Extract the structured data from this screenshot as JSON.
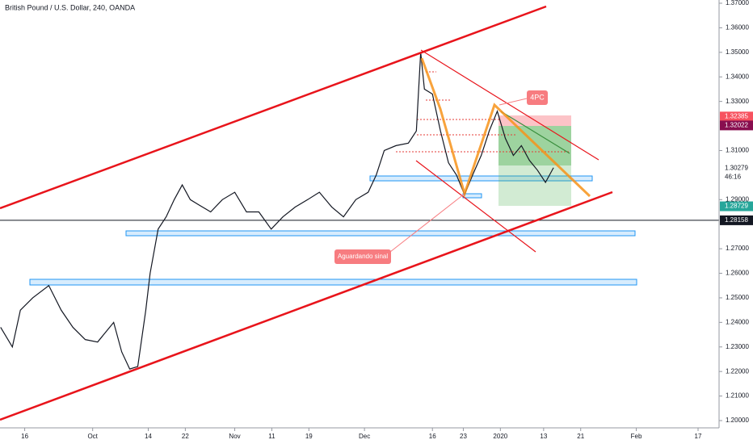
{
  "chart_data": {
    "type": "line",
    "title": "British Pound / U.S. Dollar, 240, OANDA",
    "series": [
      {
        "name": "GBPUSD",
        "color": "#131722",
        "x": [
          -3.9,
          -2,
          -0.7,
          1.3,
          3.9,
          5.9,
          7.8,
          9.8,
          11.8,
          14.4,
          15.7,
          17,
          18.3,
          19.6,
          20.3,
          21.6,
          22.9,
          24.2,
          25.5,
          26.8,
          28.1,
          30.1,
          32,
          34,
          35.9,
          37.9,
          39.9,
          41.8,
          43.8,
          45.8,
          47.7,
          49.7,
          51.6,
          53.6,
          55.6,
          56.9,
          58.2,
          60.1,
          62.1,
          63.4,
          64.1,
          64.7,
          66,
          67.3,
          68.6,
          69.9,
          71.2,
          72.5,
          73.9,
          75.2,
          76.5,
          77.8,
          79.1,
          80.4,
          81.7,
          83,
          84.3,
          85.6
        ],
        "values": [
          1.238,
          1.23,
          1.245,
          1.25,
          1.255,
          1.245,
          1.238,
          1.233,
          1.232,
          1.24,
          1.228,
          1.221,
          1.222,
          1.245,
          1.26,
          1.278,
          1.283,
          1.29,
          1.296,
          1.29,
          1.288,
          1.285,
          1.29,
          1.293,
          1.285,
          1.285,
          1.278,
          1.283,
          1.287,
          1.29,
          1.293,
          1.287,
          1.283,
          1.29,
          1.293,
          1.3,
          1.31,
          1.312,
          1.313,
          1.318,
          1.35,
          1.335,
          1.333,
          1.318,
          1.305,
          1.3,
          1.292,
          1.3,
          1.308,
          1.318,
          1.326,
          1.315,
          1.308,
          1.312,
          1.306,
          1.302,
          1.297,
          1.303
        ]
      }
    ],
    "xlim": [
      -4,
      112.4
    ],
    "xticks": [
      {
        "value": 0,
        "label": "16"
      },
      {
        "value": 11,
        "label": "Oct"
      },
      {
        "value": 20,
        "label": "14"
      },
      {
        "value": 26,
        "label": "22"
      },
      {
        "value": 34,
        "label": "Nov"
      },
      {
        "value": 40,
        "label": "11"
      },
      {
        "value": 46,
        "label": "19"
      },
      {
        "value": 55,
        "label": "Dec"
      },
      {
        "value": 66,
        "label": "16"
      },
      {
        "value": 71,
        "label": "23"
      },
      {
        "value": 77,
        "label": "2020"
      },
      {
        "value": 84,
        "label": "13"
      },
      {
        "value": 90,
        "label": "21"
      },
      {
        "value": 99,
        "label": "Feb"
      },
      {
        "value": 109,
        "label": "17"
      }
    ],
    "ylim": [
      1.2,
      1.37
    ],
    "yticks": [
      {
        "value": 1.2,
        "label": "1.20000"
      },
      {
        "value": 1.21,
        "label": "1.21000"
      },
      {
        "value": 1.22,
        "label": "1.22000"
      },
      {
        "value": 1.23,
        "label": "1.23000"
      },
      {
        "value": 1.24,
        "label": "1.24000"
      },
      {
        "value": 1.25,
        "label": "1.25000"
      },
      {
        "value": 1.26,
        "label": "1.26000"
      },
      {
        "value": 1.27,
        "label": "1.27000"
      },
      {
        "value": 1.29,
        "label": "1.29000"
      },
      {
        "value": 1.31,
        "label": "1.31000"
      },
      {
        "value": 1.33,
        "label": "1.33000"
      },
      {
        "value": 1.34,
        "label": "1.34000"
      },
      {
        "value": 1.35,
        "label": "1.35000"
      },
      {
        "value": 1.36,
        "label": "1.36000"
      },
      {
        "value": 1.37,
        "label": "1.37000"
      }
    ],
    "price_markers": [
      {
        "value": 1.32385,
        "color": "#f7525f"
      },
      {
        "value": 1.32022,
        "color": "#880e4f"
      },
      {
        "value": 1.30279,
        "color": "#ffffff"
      },
      {
        "value": 1.28729,
        "color": "#26a69a"
      },
      {
        "value": 1.28158,
        "color": "#131722"
      }
    ],
    "countdown": "46:16",
    "annotations": [
      "4PC",
      "Aguardando sinal"
    ],
    "grid": false
  }
}
